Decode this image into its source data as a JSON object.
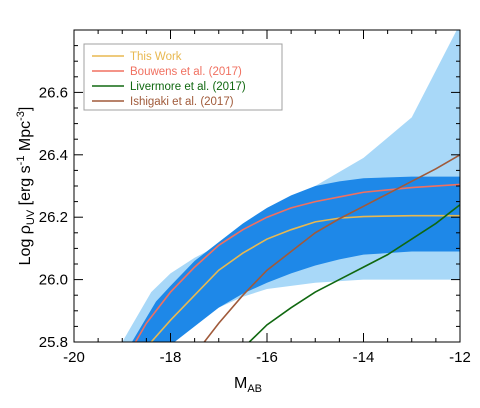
{
  "chart_data": {
    "type": "line",
    "xlabel": {
      "main": "M",
      "sub": "AB"
    },
    "ylabel": {
      "pre": "Log ",
      "rho": "ρ",
      "sub": "UV",
      "bracket": " [erg s",
      "e1": "-1",
      "mid": " Mpc",
      "e2": "-3",
      "close": "]"
    },
    "xlim": [
      -20,
      -12
    ],
    "ylim": [
      25.8,
      26.8
    ],
    "xticks": [
      -20,
      -18,
      -16,
      -14,
      -12
    ],
    "xtick_labels": [
      "-20",
      "-18",
      "-16",
      "-14",
      "-12"
    ],
    "yticks": [
      25.8,
      26.0,
      26.2,
      26.4,
      26.6
    ],
    "ytick_labels": [
      "25.8",
      "26.0",
      "26.2",
      "26.4",
      "26.6"
    ],
    "grid": false,
    "legend_position": "top-left",
    "bands": [
      {
        "color": "#a8d8f8",
        "x": [
          -19.0,
          -18.4,
          -18.0,
          -17.5,
          -17.0,
          -16.5,
          -16.0,
          -15.0,
          -14.0,
          -13.0,
          -12.0
        ],
        "upper": [
          25.8,
          25.96,
          26.02,
          26.07,
          26.11,
          26.16,
          26.21,
          26.3,
          26.39,
          26.52,
          26.82
        ],
        "lower": [
          25.61,
          25.72,
          25.8,
          25.86,
          25.91,
          25.945,
          25.97,
          25.99,
          26.0,
          26.0,
          26.0
        ]
      },
      {
        "color": "#1e88e8",
        "x": [
          -18.8,
          -18.3,
          -18.0,
          -17.5,
          -17.0,
          -16.5,
          -16.0,
          -15.5,
          -15.0,
          -14.5,
          -14.0,
          -13.0,
          -12.0
        ],
        "upper": [
          25.8,
          25.93,
          25.98,
          26.06,
          26.12,
          26.18,
          26.23,
          26.27,
          26.3,
          26.315,
          26.325,
          26.33,
          26.33
        ],
        "lower": [
          25.63,
          25.74,
          25.79,
          25.85,
          25.91,
          25.955,
          25.99,
          26.02,
          26.045,
          26.065,
          26.08,
          26.09,
          26.09
        ]
      }
    ],
    "series": [
      {
        "name": "This Work",
        "color": "#e8b850",
        "x": [
          -18.4,
          -18.0,
          -17.5,
          -17.0,
          -16.5,
          -16.0,
          -15.5,
          -15.0,
          -14.5,
          -14.0,
          -13.0,
          -12.0
        ],
        "y": [
          25.8,
          25.87,
          25.95,
          26.03,
          26.085,
          26.13,
          26.16,
          26.185,
          26.197,
          26.202,
          26.205,
          26.205
        ]
      },
      {
        "name": "Bouwens et al. (2017)",
        "color": "#f07060",
        "x": [
          -18.8,
          -18.5,
          -18.0,
          -17.5,
          -17.0,
          -16.5,
          -16.0,
          -15.5,
          -15.0,
          -14.5,
          -14.0,
          -13.0,
          -12.0
        ],
        "y": [
          25.78,
          25.86,
          25.96,
          26.04,
          26.11,
          26.16,
          26.2,
          26.23,
          26.25,
          26.265,
          26.28,
          26.295,
          26.305
        ]
      },
      {
        "name": "Livermore et al. (2017)",
        "color": "#106810",
        "x": [
          -16.5,
          -16.0,
          -15.5,
          -15.0,
          -14.5,
          -14.0,
          -13.5,
          -13.0,
          -12.5,
          -12.0
        ],
        "y": [
          25.78,
          25.855,
          25.91,
          25.96,
          26.0,
          26.04,
          26.08,
          26.13,
          26.18,
          26.24
        ]
      },
      {
        "name": "Ishigaki et al. (2017)",
        "color": "#a05a3a",
        "x": [
          -17.4,
          -17.0,
          -16.5,
          -16.0,
          -15.5,
          -15.0,
          -14.5,
          -14.0,
          -13.5,
          -13.0,
          -12.5,
          -12.0
        ],
        "y": [
          25.78,
          25.86,
          25.95,
          26.03,
          26.09,
          26.15,
          26.195,
          26.235,
          26.275,
          26.315,
          26.355,
          26.4
        ]
      }
    ]
  }
}
